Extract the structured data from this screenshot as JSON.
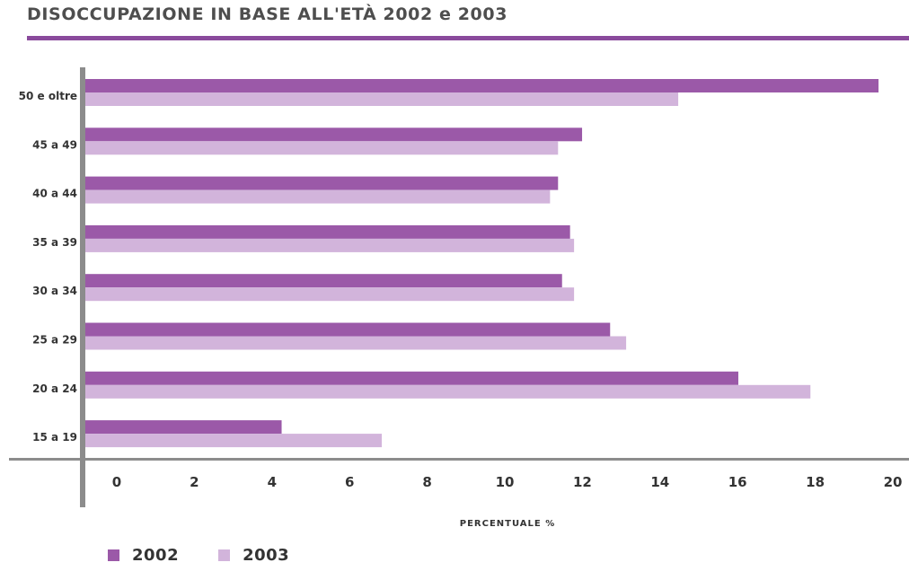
{
  "chart_data": {
    "type": "bar",
    "orientation": "horizontal",
    "title": "DISOCCUPAZIONE IN BASE ALL'ETÀ 2002 e 2003",
    "xlabel": "PERCENTUALE %",
    "ylabel": "",
    "xlim": [
      0,
      20
    ],
    "xticks": [
      "0",
      "2",
      "4",
      "6",
      "8",
      "10",
      "12",
      "14",
      "16",
      "18",
      "20"
    ],
    "categories": [
      "50 e oltre",
      "45 a 49",
      "40 a 44",
      "35 a 39",
      "30 a 34",
      "25 a 29",
      "20 a 24",
      "15 a 19"
    ],
    "series": [
      {
        "name": "2002",
        "color": "#9b59a8",
        "values": [
          19.8,
          12.4,
          11.8,
          12.1,
          11.9,
          13.1,
          16.3,
          4.9
        ]
      },
      {
        "name": "2003",
        "color": "#d2b4db",
        "values": [
          14.8,
          11.8,
          11.6,
          12.2,
          12.2,
          13.5,
          18.1,
          7.4
        ]
      }
    ],
    "grid": false,
    "legend_position": "bottom-left"
  }
}
